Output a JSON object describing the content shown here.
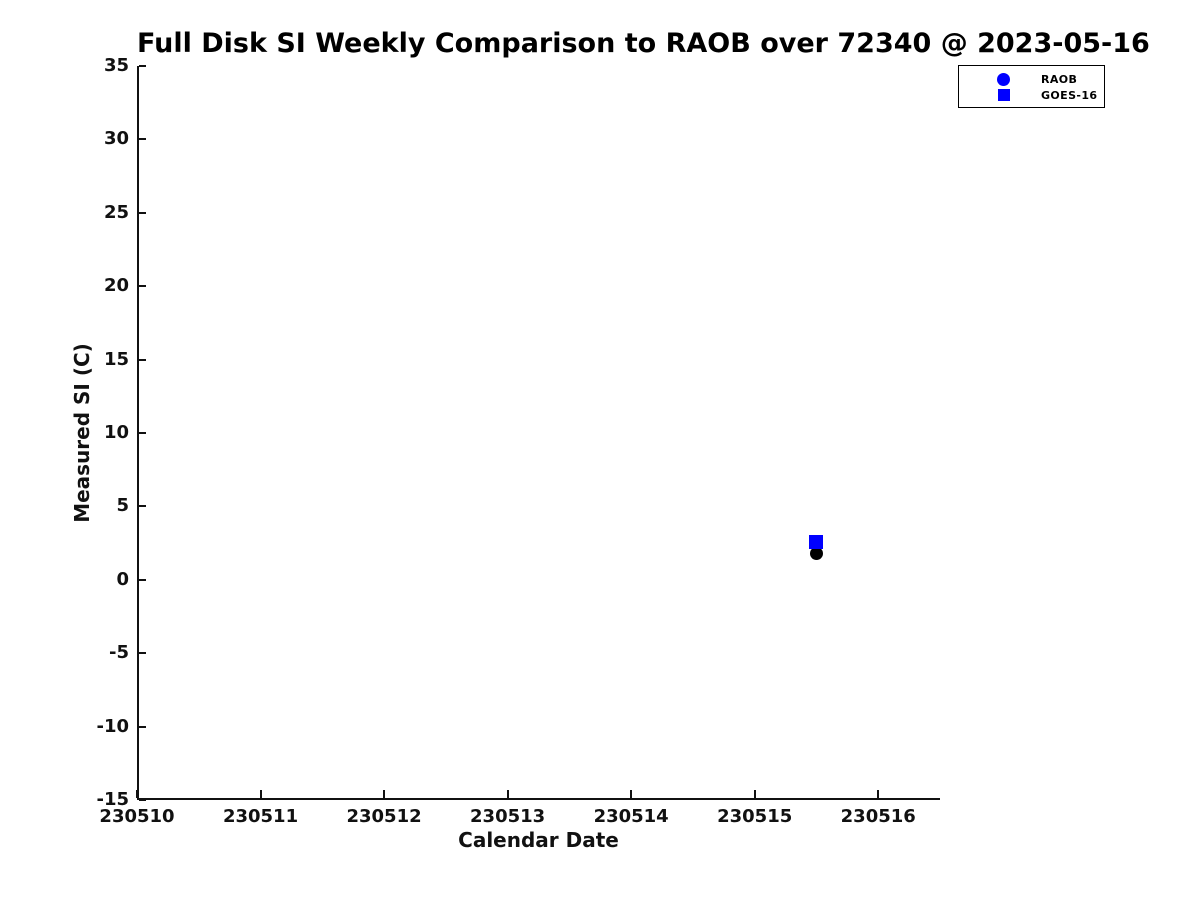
{
  "figure": {
    "background": "#ffffff",
    "axis_color": "#111111",
    "text_color": "#000000"
  },
  "chart_data": {
    "type": "scatter",
    "title": "Full Disk SI Weekly Comparison to RAOB over 72340 @ 2023-05-16",
    "xlabel": "Calendar Date",
    "ylabel": "Measured SI (C)",
    "xlim": [
      230510,
      230516.5
    ],
    "ylim": [
      -15,
      35
    ],
    "x_ticks": [
      230510,
      230511,
      230512,
      230513,
      230514,
      230515,
      230516
    ],
    "y_ticks": [
      35,
      30,
      25,
      20,
      15,
      10,
      5,
      0,
      -5,
      -10,
      -15
    ],
    "grid": false,
    "legend": {
      "position": "top-right",
      "border_color": "#000000"
    },
    "series": [
      {
        "name": "RAOB",
        "marker": "circle",
        "legend_color": "#0000ff",
        "point_color": "#000000",
        "points": [
          {
            "x": 230515.5,
            "y": 1.8
          }
        ]
      },
      {
        "name": "GOES-16",
        "marker": "square",
        "legend_color": "#0000ff",
        "point_color": "#0000ff",
        "points": [
          {
            "x": 230515.5,
            "y": 2.6
          }
        ]
      }
    ]
  }
}
